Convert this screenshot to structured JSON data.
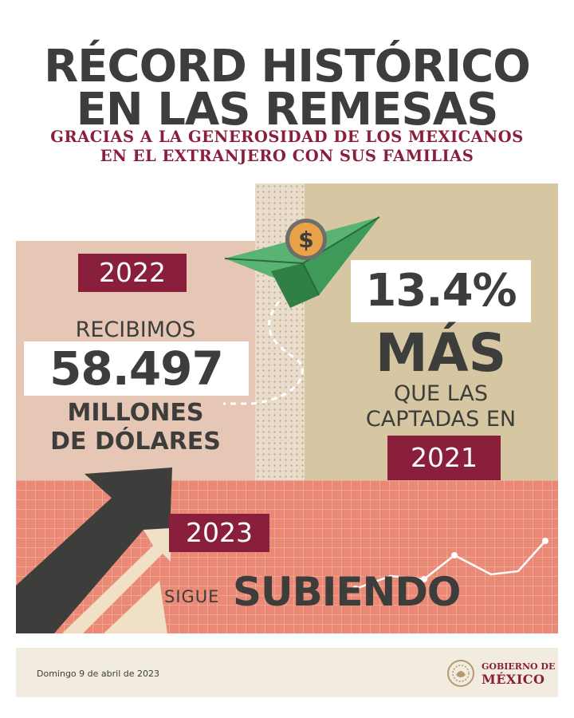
{
  "title": {
    "line1": "RÉCORD HISTÓRICO",
    "line2": "EN LAS REMESAS"
  },
  "subtitle": {
    "line1": "GRACIAS A LA GENEROSIDAD DE LOS MEXICANOS",
    "line2": "EN EL EXTRANJERO CON SUS FAMILIAS"
  },
  "left_panel": {
    "year": "2022",
    "received_label": "RECIBIMOS",
    "amount": "58.497",
    "unit_line1": "MILLONES",
    "unit_line2": "DE DÓLARES"
  },
  "right_panel": {
    "percent": "13.4%",
    "more": "MÁS",
    "compare_line1": "QUE LAS",
    "compare_line2": "CAPTADAS EN",
    "compare_year": "2021"
  },
  "bottom_panel": {
    "year": "2023",
    "rising_small": "SIGUE",
    "rising_big": "SUBIENDO"
  },
  "icons": {
    "coin_symbol": "$"
  },
  "footer": {
    "date": "Domingo 9 de abril de 2023",
    "gov_line1": "GOBIERNO DE",
    "gov_line2": "MÉXICO"
  },
  "colors": {
    "dark": "#3d3d3b",
    "maroon": "#8a1f3c",
    "salmon": "#ea8a76",
    "beige": "#e6c7b6",
    "khaki": "#d6c6a1",
    "green": "#3d9a59"
  }
}
